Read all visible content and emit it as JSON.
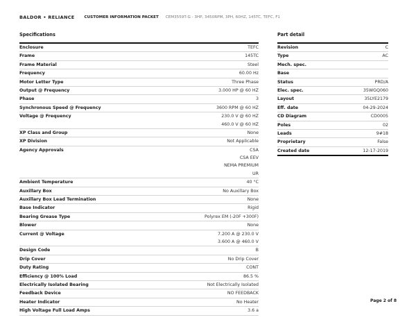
{
  "header": {
    "logo_text": "BALDOR • RELIANCE",
    "packet_title": "CUSTOMER INFORMATION PACKET",
    "model": "CEM3559T-G - 3HP, 3450RPM, 3PH, 60HZ, 145TC, TEFC, F1"
  },
  "specifications": {
    "title": "Specifications",
    "rows": [
      {
        "label": "Enclosure",
        "values": [
          "TEFC"
        ]
      },
      {
        "label": "Frame",
        "values": [
          "145TC"
        ]
      },
      {
        "label": "Frame Material",
        "values": [
          "Steel"
        ]
      },
      {
        "label": "Frequency",
        "values": [
          "60.00 Hz"
        ]
      },
      {
        "label": "Motor Letter Type",
        "values": [
          "Three Phase"
        ]
      },
      {
        "label": "Output @ Frequency",
        "values": [
          "3.000 HP @ 60 HZ"
        ]
      },
      {
        "label": "Phase",
        "values": [
          "3"
        ]
      },
      {
        "label": "Synchronous Speed @ Frequency",
        "values": [
          "3600 RPM @ 60 HZ"
        ]
      },
      {
        "label": "Voltage @ Frequency",
        "values": [
          "230.0 V @ 60 HZ",
          "460.0 V @ 60 HZ"
        ]
      },
      {
        "label": "XP Class and Group",
        "values": [
          "None"
        ]
      },
      {
        "label": "XP Division",
        "values": [
          "Not Applicable"
        ]
      },
      {
        "label": "Agency Approvals",
        "values": [
          "CSA",
          "CSA EEV",
          "NEMA PREMIUM",
          "UR"
        ]
      },
      {
        "label": "Ambient Temperature",
        "values": [
          "40 °C"
        ]
      },
      {
        "label": "Auxillary Box",
        "values": [
          "No Auxillary Box"
        ]
      },
      {
        "label": "Auxillary Box Lead Termination",
        "values": [
          "None"
        ]
      },
      {
        "label": "Base Indicator",
        "values": [
          "Rigid"
        ]
      },
      {
        "label": "Bearing Grease Type",
        "values": [
          "Polyrex EM (-20F +300F)"
        ]
      },
      {
        "label": "Blower",
        "values": [
          "None"
        ]
      },
      {
        "label": "Current @ Voltage",
        "values": [
          "7.200 A @ 230.0 V",
          "3.600 A @ 460.0 V"
        ]
      },
      {
        "label": "Design Code",
        "values": [
          "B"
        ]
      },
      {
        "label": "Drip Cover",
        "values": [
          "No Drip Cover"
        ]
      },
      {
        "label": "Duty Rating",
        "values": [
          "CONT"
        ]
      },
      {
        "label": "Efficiency @ 100% Load",
        "values": [
          "86.5 %"
        ]
      },
      {
        "label": "Electrically Isolated Bearing",
        "values": [
          "Not Electrically Isolated"
        ]
      },
      {
        "label": "Feedback Device",
        "values": [
          "NO FEEDBACK"
        ]
      },
      {
        "label": "Heater Indicator",
        "values": [
          "No Heater"
        ]
      },
      {
        "label": "High Voltage Full Load Amps",
        "values": [
          "3.6 a"
        ]
      }
    ]
  },
  "part_detail": {
    "title": "Part detail",
    "rows": [
      {
        "label": "Revision",
        "values": [
          "C"
        ]
      },
      {
        "label": "Type",
        "values": [
          "AC"
        ]
      },
      {
        "label": "Mech. spec.",
        "values": [
          ""
        ]
      },
      {
        "label": "Base",
        "values": [
          ""
        ]
      },
      {
        "label": "Status",
        "values": [
          "PRD/A"
        ]
      },
      {
        "label": "Elec. spec.",
        "values": [
          "35WGQ060"
        ]
      },
      {
        "label": "Layout",
        "values": [
          "35LYE2179"
        ]
      },
      {
        "label": "Eff. date",
        "values": [
          "04-29-2024"
        ]
      },
      {
        "label": "CD Diagram",
        "values": [
          "CD0005"
        ]
      },
      {
        "label": "Poles",
        "values": [
          "02"
        ]
      },
      {
        "label": "Leads",
        "values": [
          "9#18"
        ]
      },
      {
        "label": "Proprietary",
        "values": [
          "False"
        ]
      },
      {
        "label": "Created date",
        "values": [
          "12-17-2019"
        ]
      }
    ]
  },
  "footer": {
    "page": "Page 2 of 8"
  }
}
